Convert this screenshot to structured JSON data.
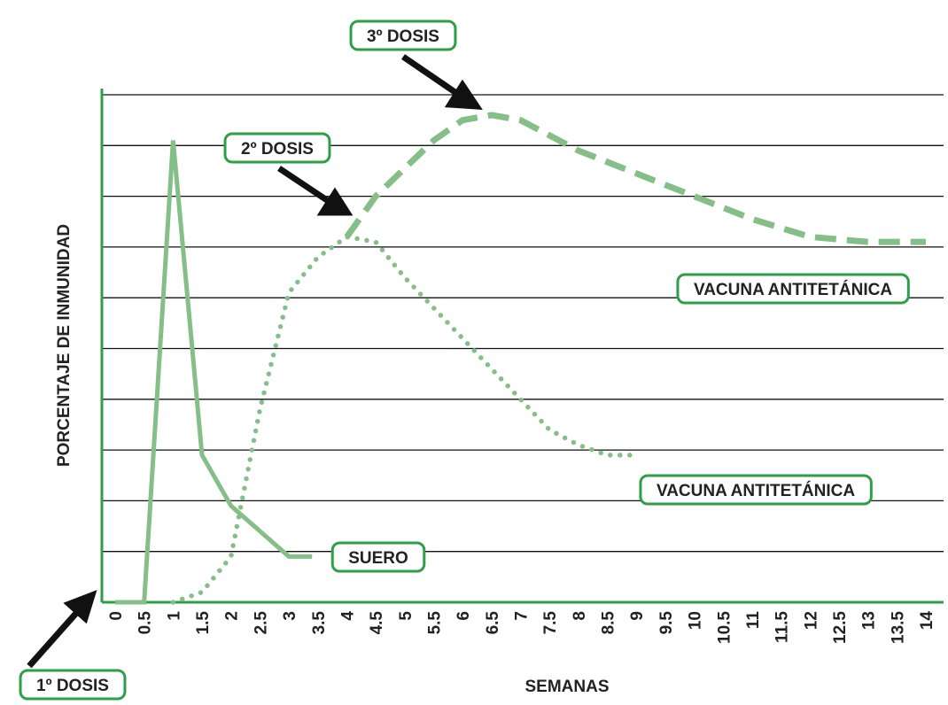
{
  "chart_data": {
    "type": "line",
    "xlabel": "SEMANAS",
    "ylabel": "PORCENTAJE DE INMUNIDAD",
    "xlim": [
      0,
      14
    ],
    "xticks": [
      0,
      0.5,
      1,
      1.5,
      2,
      2.5,
      3,
      3.5,
      4,
      4.5,
      5,
      5.5,
      6,
      6.5,
      7,
      7.5,
      8,
      8.5,
      9,
      9.5,
      10,
      10.5,
      11,
      11.5,
      12,
      12.5,
      13,
      13.5,
      14
    ],
    "ylim": [
      0,
      100
    ],
    "yticks": [
      10,
      20,
      30,
      40,
      50,
      60,
      70,
      80,
      90,
      100
    ],
    "grid": true,
    "series": [
      {
        "name": "SUERO",
        "color": "#84bf88",
        "style": "solid",
        "x": [
          0,
          0.5,
          1,
          1.5,
          2,
          3,
          3.4
        ],
        "values": [
          0,
          0,
          91,
          29,
          19,
          9,
          9
        ]
      },
      {
        "name": "VACUNA ANTITETÁNICA",
        "color": "#84bf88",
        "style": "dotted",
        "x": [
          1,
          1.5,
          2,
          2.5,
          3,
          3.5,
          4,
          4.5,
          5,
          5.5,
          6,
          6.5,
          7,
          7.5,
          8,
          8.5,
          9
        ],
        "values": [
          0,
          2,
          9,
          38,
          61,
          68,
          72,
          71,
          64,
          58,
          52,
          46,
          40,
          34,
          31,
          29,
          29
        ]
      },
      {
        "name": "VACUNA ANTITETÁNICA",
        "color": "#84bf88",
        "style": "dashed",
        "x": [
          4,
          4.5,
          5,
          5.5,
          6,
          6.5,
          7,
          8,
          9,
          10,
          11,
          12,
          13,
          14
        ],
        "values": [
          72,
          80,
          85.5,
          91,
          95,
          96,
          95,
          89,
          84.5,
          80,
          75.5,
          72,
          71,
          71
        ]
      }
    ],
    "annotations": [
      "3º DOSIS",
      "2º DOSIS",
      "1º DOSIS"
    ]
  }
}
